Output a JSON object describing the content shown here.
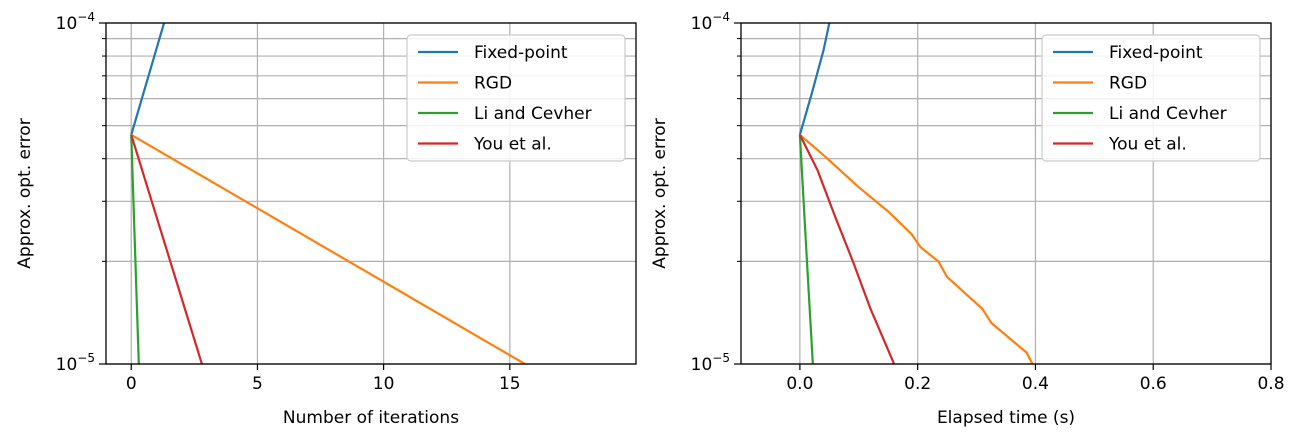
{
  "chart_data": [
    {
      "type": "line",
      "xlabel": "Number of iterations",
      "ylabel": "Approx. opt. error",
      "xlim": [
        -1,
        20
      ],
      "ylim": [
        1e-05,
        0.0001
      ],
      "yscale": "log",
      "x_ticks": [
        0,
        5,
        10,
        15
      ],
      "x_tick_labels": [
        "0",
        "5",
        "10",
        "15"
      ],
      "y_tick_labels": [
        {
          "base": "10",
          "exp": "−5",
          "value": 1e-05
        },
        {
          "base": "10",
          "exp": "−4",
          "value": 0.0001
        }
      ],
      "grid": true,
      "legend_position": "top-right",
      "series": [
        {
          "name": "Fixed-point",
          "color": "#1f77b4",
          "points": [
            [
              0,
              4.7e-05
            ],
            [
              1.3,
              0.0001
            ]
          ]
        },
        {
          "name": "RGD",
          "color": "#ff7f0e",
          "points": [
            [
              0,
              4.7e-05
            ],
            [
              15.6,
              1e-05
            ]
          ]
        },
        {
          "name": "Li and Cevher",
          "color": "#2ca02c",
          "points": [
            [
              0,
              4.7e-05
            ],
            [
              0.3,
              1e-05
            ]
          ]
        },
        {
          "name": "You et al.",
          "color": "#d62728",
          "points": [
            [
              0,
              4.7e-05
            ],
            [
              2.8,
              1e-05
            ]
          ]
        }
      ]
    },
    {
      "type": "line",
      "xlabel": "Elapsed time (s)",
      "ylabel": "Approx. opt. error",
      "xlim": [
        -0.1,
        0.8
      ],
      "ylim": [
        1e-05,
        0.0001
      ],
      "yscale": "log",
      "x_ticks": [
        0.0,
        0.2,
        0.4,
        0.6,
        0.8
      ],
      "x_tick_labels": [
        "0.0",
        "0.2",
        "0.4",
        "0.6",
        "0.8"
      ],
      "y_tick_labels": [
        {
          "base": "10",
          "exp": "−5",
          "value": 1e-05
        },
        {
          "base": "10",
          "exp": "−4",
          "value": 0.0001
        }
      ],
      "grid": true,
      "legend_position": "top-right",
      "series": [
        {
          "name": "Fixed-point",
          "color": "#1f77b4",
          "points": [
            [
              0,
              4.7e-05
            ],
            [
              0.02,
              6.2e-05
            ],
            [
              0.04,
              8.3e-05
            ],
            [
              0.05,
              0.0001
            ]
          ]
        },
        {
          "name": "RGD",
          "color": "#ff7f0e",
          "points": [
            [
              0,
              4.7e-05
            ],
            [
              0.04,
              4.1e-05
            ],
            [
              0.1,
              3.3e-05
            ],
            [
              0.15,
              2.8e-05
            ],
            [
              0.19,
              2.4e-05
            ],
            [
              0.205,
              2.2e-05
            ],
            [
              0.235,
              2e-05
            ],
            [
              0.25,
              1.8e-05
            ],
            [
              0.31,
              1.45e-05
            ],
            [
              0.325,
              1.32e-05
            ],
            [
              0.385,
              1.08e-05
            ],
            [
              0.395,
              1e-05
            ]
          ]
        },
        {
          "name": "Li and Cevher",
          "color": "#2ca02c",
          "points": [
            [
              0,
              4.7e-05
            ],
            [
              0.012,
              2e-05
            ],
            [
              0.022,
              1e-05
            ]
          ]
        },
        {
          "name": "You et al.",
          "color": "#d62728",
          "points": [
            [
              0,
              4.7e-05
            ],
            [
              0.03,
              3.7e-05
            ],
            [
              0.06,
              2.7e-05
            ],
            [
              0.09,
              2e-05
            ],
            [
              0.12,
              1.45e-05
            ],
            [
              0.16,
              1e-05
            ]
          ]
        }
      ]
    }
  ]
}
